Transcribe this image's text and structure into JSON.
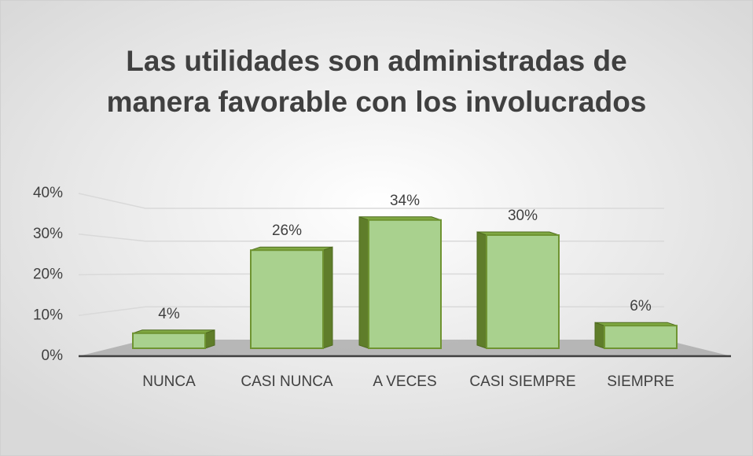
{
  "chart_data": {
    "type": "bar3d",
    "title": "Las utilidades son administradas de manera favorable con los involucrados",
    "categories": [
      "NUNCA",
      "CASI NUNCA",
      "A VECES",
      "CASI SIEMPRE",
      "SIEMPRE"
    ],
    "values": [
      4,
      26,
      34,
      30,
      6
    ],
    "value_labels": [
      "4%",
      "26%",
      "34%",
      "30%",
      "6%"
    ],
    "color": "#a9d18e",
    "ylim": [
      0,
      40
    ],
    "yticks": [
      {
        "value": 0,
        "label": "0%"
      },
      {
        "value": 10,
        "label": "10%"
      },
      {
        "value": 20,
        "label": "20%"
      },
      {
        "value": 30,
        "label": "30%"
      },
      {
        "value": 40,
        "label": "40%"
      }
    ],
    "grid": true
  }
}
